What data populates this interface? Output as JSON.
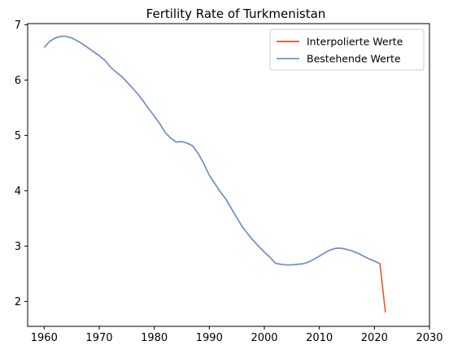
{
  "chart_data": {
    "type": "line",
    "title": "Fertility Rate of Turkmenistan",
    "xlabel": "",
    "ylabel": "",
    "xlim": [
      1957,
      2030
    ],
    "ylim": [
      1.55,
      7.02
    ],
    "xticks": [
      1960,
      1970,
      1980,
      1990,
      2000,
      2010,
      2020,
      2030
    ],
    "yticks": [
      2,
      3,
      4,
      5,
      6,
      7
    ],
    "grid": false,
    "legend_position": "top-right",
    "series": [
      {
        "name": "Interpolierte Werte",
        "color": "#e8501e",
        "x": [
          1960,
          1961,
          1962,
          1963,
          1964,
          1965,
          1966,
          1967,
          1968,
          1969,
          1970,
          1971,
          1972,
          1973,
          1974,
          1975,
          1976,
          1977,
          1978,
          1979,
          1980,
          1981,
          1982,
          1983,
          1984,
          1985,
          1986,
          1987,
          1988,
          1989,
          1990,
          1991,
          1992,
          1993,
          1994,
          1995,
          1996,
          1997,
          1998,
          1999,
          2000,
          2001,
          2002,
          2003,
          2004,
          2005,
          2006,
          2007,
          2008,
          2009,
          2010,
          2011,
          2012,
          2013,
          2014,
          2015,
          2016,
          2017,
          2018,
          2019,
          2020,
          2021,
          2022
        ],
        "y": [
          6.59,
          6.7,
          6.76,
          6.79,
          6.79,
          6.76,
          6.71,
          6.65,
          6.58,
          6.51,
          6.44,
          6.36,
          6.24,
          6.15,
          6.07,
          5.97,
          5.86,
          5.75,
          5.62,
          5.48,
          5.35,
          5.21,
          5.05,
          4.95,
          4.88,
          4.89,
          4.86,
          4.81,
          4.67,
          4.49,
          4.28,
          4.13,
          3.98,
          3.85,
          3.68,
          3.51,
          3.35,
          3.22,
          3.1,
          2.99,
          2.89,
          2.8,
          2.69,
          2.67,
          2.66,
          2.66,
          2.67,
          2.68,
          2.71,
          2.76,
          2.82,
          2.88,
          2.93,
          2.96,
          2.96,
          2.94,
          2.91,
          2.87,
          2.82,
          2.77,
          2.73,
          2.68,
          1.8
        ]
      },
      {
        "name": "Bestehende Werte",
        "color": "#6495ed",
        "x": [
          1960,
          1961,
          1962,
          1963,
          1964,
          1965,
          1966,
          1967,
          1968,
          1969,
          1970,
          1971,
          1972,
          1973,
          1974,
          1975,
          1976,
          1977,
          1978,
          1979,
          1980,
          1981,
          1982,
          1983,
          1984,
          1985,
          1986,
          1987,
          1988,
          1989,
          1990,
          1991,
          1992,
          1993,
          1994,
          1995,
          1996,
          1997,
          1998,
          1999,
          2000,
          2001,
          2002,
          2003,
          2004,
          2005,
          2006,
          2007,
          2008,
          2009,
          2010,
          2011,
          2012,
          2013,
          2014,
          2015,
          2016,
          2017,
          2018,
          2019,
          2020,
          2021
        ],
        "y": [
          6.59,
          6.7,
          6.76,
          6.79,
          6.79,
          6.76,
          6.71,
          6.65,
          6.58,
          6.51,
          6.44,
          6.36,
          6.24,
          6.15,
          6.07,
          5.97,
          5.86,
          5.75,
          5.62,
          5.48,
          5.35,
          5.21,
          5.05,
          4.95,
          4.88,
          4.89,
          4.86,
          4.81,
          4.67,
          4.49,
          4.28,
          4.13,
          3.98,
          3.85,
          3.68,
          3.51,
          3.35,
          3.22,
          3.1,
          2.99,
          2.89,
          2.8,
          2.69,
          2.67,
          2.66,
          2.66,
          2.67,
          2.68,
          2.71,
          2.76,
          2.82,
          2.88,
          2.93,
          2.96,
          2.96,
          2.94,
          2.91,
          2.87,
          2.82,
          2.77,
          2.73,
          2.68
        ]
      }
    ]
  }
}
